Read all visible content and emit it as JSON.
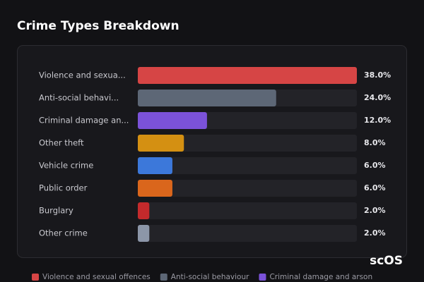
{
  "chart_data": {
    "type": "bar",
    "orientation": "horizontal",
    "title": "Crime Types Breakdown",
    "categories": [
      "Violence and sexua...",
      "Anti-social behavi...",
      "Criminal damage an...",
      "Other theft",
      "Vehicle crime",
      "Public order",
      "Burglary",
      "Other crime"
    ],
    "values": [
      38,
      24,
      12,
      8,
      6,
      6,
      2,
      2
    ],
    "value_labels": [
      "38.0%",
      "24.0%",
      "12.0%",
      "8.0%",
      "6.0%",
      "6.0%",
      "2.0%",
      "2.0%"
    ],
    "colors": [
      "#d64545",
      "#5d6776",
      "#7b52d9",
      "#d49012",
      "#3c78da",
      "#da661c",
      "#c42a2c",
      "#8c96a8"
    ],
    "legend": [
      "Violence and sexual offences",
      "Anti-social behaviour",
      "Criminal damage and arson"
    ],
    "watermark": "scOS"
  }
}
